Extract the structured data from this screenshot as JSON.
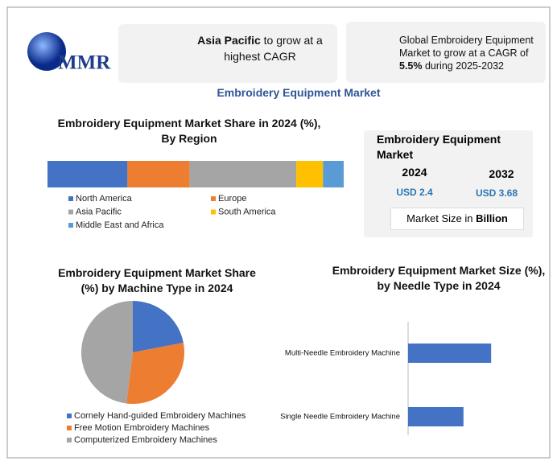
{
  "logo": "MMR",
  "cards": [
    {
      "bold": "Asia Pacific",
      "text": " to grow at a highest CAGR"
    },
    {
      "text": "Global Embroidery Equipment Market to grow at a CAGR of ",
      "bold": "5.5%",
      "text2": " during 2025-2032"
    }
  ],
  "title": "Embroidery Equipment Market",
  "summary": {
    "title": "Embroidery Equipment Market",
    "years": [
      {
        "year": "2024",
        "value": "USD 2.4"
      },
      {
        "year": "2032",
        "value": "USD 3.68"
      }
    ],
    "note": "Market Size in ",
    "note_bold": "Billion"
  },
  "chart_data": [
    {
      "type": "stacked-bar",
      "title": "Embroidery Equipment Market Share in 2024 (%), By Region",
      "series": [
        {
          "name": "North America",
          "color": "#4472c4",
          "values": [
            27
          ]
        },
        {
          "name": "Europe",
          "color": "#ed7d31",
          "values": [
            21
          ]
        },
        {
          "name": "Asia Pacific",
          "color": "#a5a5a5",
          "values": [
            36
          ]
        },
        {
          "name": "South America",
          "color": "#ffc000",
          "values": [
            9
          ]
        },
        {
          "name": "Middle East and Africa",
          "color": "#5b9bd5",
          "values": [
            7
          ]
        }
      ]
    },
    {
      "type": "pie",
      "title": "Embroidery Equipment Market Share (%) by Machine Type in 2024",
      "categories": [
        "Cornely Hand-guided Embroidery Machines",
        "Free Motion Embroidery Machines",
        "Computerized Embroidery Machines"
      ],
      "values": [
        22,
        30,
        48
      ],
      "colors": [
        "#4472c4",
        "#ed7d31",
        "#a5a5a5"
      ]
    },
    {
      "type": "bar",
      "title": "Embroidery Equipment Market Size (%), by Needle Type in 2024",
      "categories": [
        "Multi-Needle Embroidery Machine",
        "Single Needle Embroidery Machine"
      ],
      "values": [
        60,
        40
      ],
      "color": "#4472c4",
      "xlim": [
        0,
        100
      ]
    }
  ]
}
